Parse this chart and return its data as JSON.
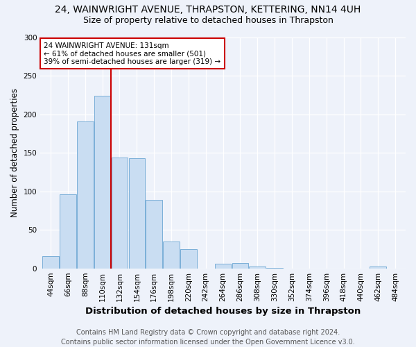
{
  "title1": "24, WAINWRIGHT AVENUE, THRAPSTON, KETTERING, NN14 4UH",
  "title2": "Size of property relative to detached houses in Thrapston",
  "xlabel": "Distribution of detached houses by size in Thrapston",
  "ylabel": "Number of detached properties",
  "footnote": "Contains HM Land Registry data © Crown copyright and database right 2024.\nContains public sector information licensed under the Open Government Licence v3.0.",
  "bin_labels": [
    "44sqm",
    "66sqm",
    "88sqm",
    "110sqm",
    "132sqm",
    "154sqm",
    "176sqm",
    "198sqm",
    "220sqm",
    "242sqm",
    "264sqm",
    "286sqm",
    "308sqm",
    "330sqm",
    "352sqm",
    "374sqm",
    "396sqm",
    "418sqm",
    "440sqm",
    "462sqm",
    "484sqm"
  ],
  "bar_values": [
    16,
    96,
    191,
    224,
    144,
    143,
    89,
    35,
    25,
    0,
    6,
    7,
    2,
    1,
    0,
    0,
    0,
    0,
    0,
    2,
    0
  ],
  "bar_color": "#c9ddf2",
  "bar_edge_color": "#7bafd8",
  "vline_bin_index": 4,
  "vline_color": "#cc0000",
  "annotation_text": "24 WAINWRIGHT AVENUE: 131sqm\n← 61% of detached houses are smaller (501)\n39% of semi-detached houses are larger (319) →",
  "annotation_box_color": "#ffffff",
  "annotation_box_edge_color": "#cc0000",
  "ylim": [
    0,
    300
  ],
  "yticks": [
    0,
    50,
    100,
    150,
    200,
    250,
    300
  ],
  "background_color": "#eef2fa",
  "title1_fontsize": 10,
  "title2_fontsize": 9,
  "xlabel_fontsize": 9.5,
  "ylabel_fontsize": 8.5,
  "tick_fontsize": 7.5,
  "annotation_fontsize": 7.5,
  "footnote_fontsize": 7
}
